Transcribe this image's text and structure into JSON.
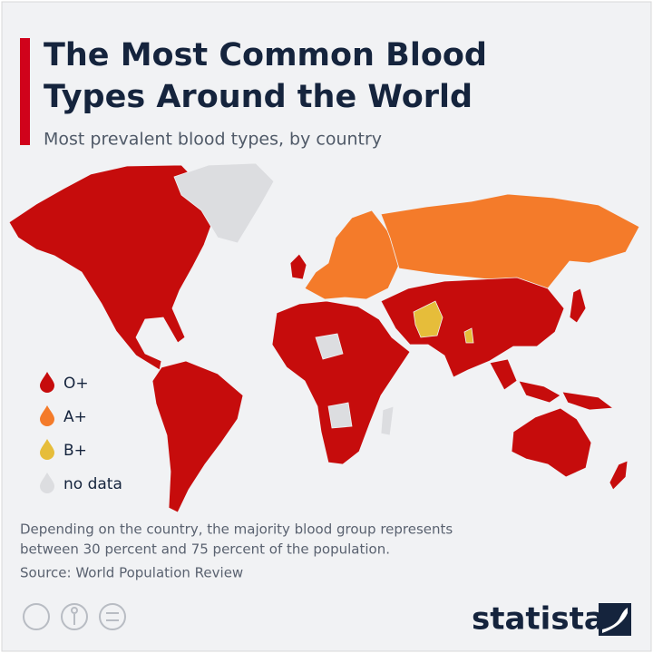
{
  "header": {
    "title_lines": [
      "The Most Common Blood",
      "Types Around the World"
    ],
    "subtitle": "Most prevalent blood types, by country"
  },
  "legend": [
    {
      "label": "O+",
      "color": "#c60c0c"
    },
    {
      "label": "A+",
      "color": "#f47b2a"
    },
    {
      "label": "B+",
      "color": "#e6bd3a"
    },
    {
      "label": "no data",
      "color": "#dcdde0"
    }
  ],
  "footer": {
    "note_lines": [
      "Depending on the country, the majority blood group represents",
      "between 30 percent and 75 percent of the population."
    ],
    "source": "Source: World Population Review",
    "brand": "statista"
  }
}
